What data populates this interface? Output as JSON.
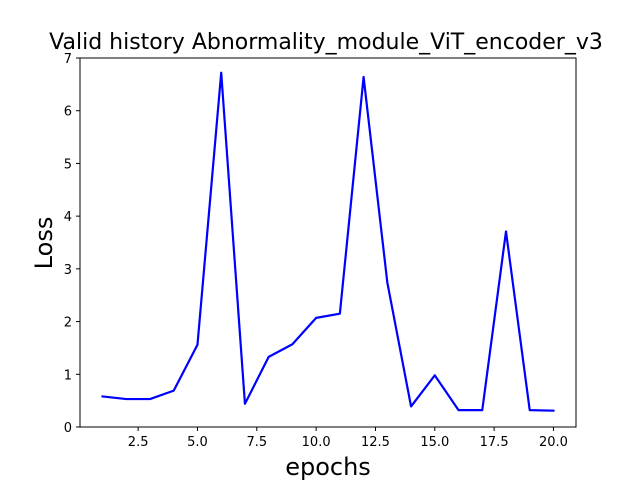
{
  "chart_data": {
    "type": "line",
    "title": "Valid history Abnormality_module_ViT_encoder_v3",
    "xlabel": "epochs",
    "ylabel": "Loss",
    "xlim": [
      0.05,
      20.95
    ],
    "ylim": [
      0,
      7
    ],
    "x_ticks": [
      2.5,
      5.0,
      7.5,
      10.0,
      12.5,
      15.0,
      17.5,
      20.0
    ],
    "x_tick_labels": [
      "2.5",
      "5.0",
      "7.5",
      "10.0",
      "12.5",
      "15.0",
      "17.5",
      "20.0"
    ],
    "y_ticks": [
      0,
      1,
      2,
      3,
      4,
      5,
      6,
      7
    ],
    "y_tick_labels": [
      "0",
      "1",
      "2",
      "3",
      "4",
      "5",
      "6",
      "7"
    ],
    "grid": false,
    "series": [
      {
        "color": "#0000ff",
        "x": [
          1,
          2,
          3,
          4,
          5,
          6,
          7,
          8,
          9,
          10,
          11,
          12,
          13,
          14,
          15,
          16,
          17,
          18,
          19,
          20
        ],
        "values": [
          0.58,
          0.53,
          0.53,
          0.69,
          1.56,
          6.72,
          0.44,
          1.33,
          1.57,
          2.07,
          2.15,
          6.64,
          2.74,
          0.39,
          0.98,
          0.32,
          0.32,
          3.71,
          0.32,
          0.31
        ]
      }
    ]
  }
}
